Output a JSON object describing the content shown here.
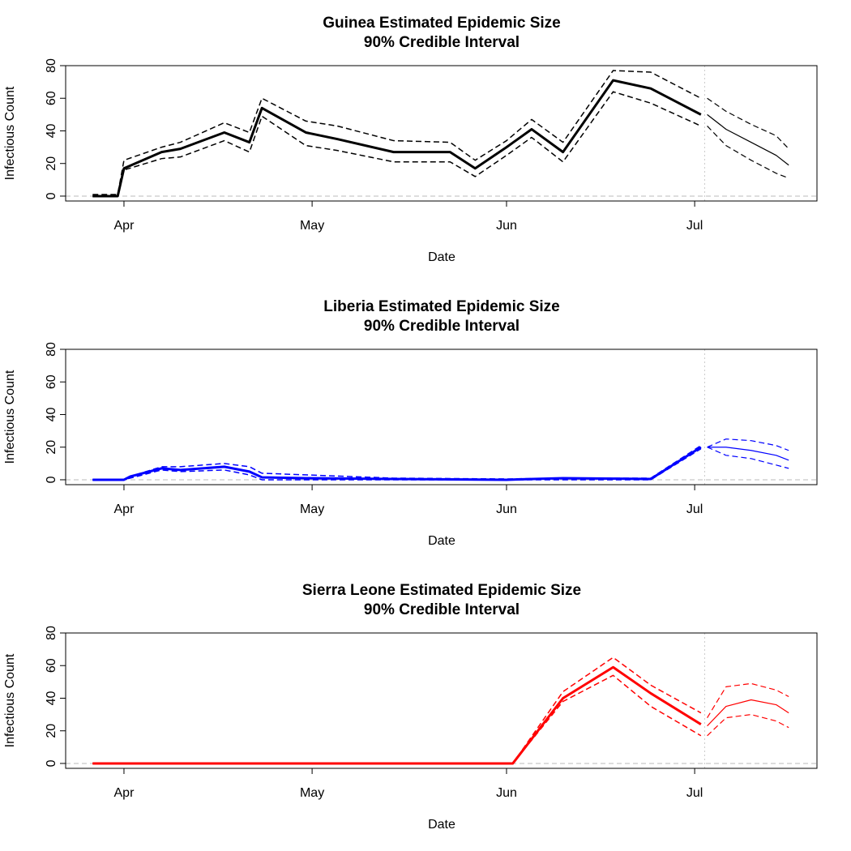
{
  "chart_data": [
    {
      "type": "line",
      "title": "Guinea Estimated Epidemic Size",
      "subtitle": "90% Credible Interval",
      "xlabel": "Date",
      "ylabel": "Infectious Count",
      "xlim": [
        -9.3,
        110.5
      ],
      "xticks": [
        {
          "value": 0,
          "label": "Apr"
        },
        {
          "value": 30,
          "label": "May"
        },
        {
          "value": 61,
          "label": "Jun"
        },
        {
          "value": 91,
          "label": "Jul"
        }
      ],
      "ylim": [
        -3,
        80
      ],
      "yticks": [
        0,
        20,
        40,
        60,
        80
      ],
      "hline": 0,
      "vline": 92.6,
      "series": [
        {
          "color": "#000000",
          "width": 3,
          "dashed": false,
          "x": [
            -5,
            -1,
            0,
            6,
            9,
            16,
            20,
            22,
            29,
            34,
            43,
            52,
            56,
            61,
            65,
            70,
            78,
            84,
            92
          ],
          "values": [
            0,
            0,
            17,
            27,
            29,
            39,
            33,
            54,
            39,
            35,
            27,
            27,
            17,
            30,
            41,
            27,
            71,
            66,
            50
          ]
        },
        {
          "color": "#000000",
          "width": 1.5,
          "dashed": true,
          "x": [
            -5,
            -1,
            0,
            6,
            9,
            16,
            20,
            22,
            29,
            34,
            43,
            52,
            56,
            61,
            65,
            70,
            78,
            84,
            92
          ],
          "values": [
            1,
            1,
            22,
            30,
            33,
            45,
            39,
            60,
            46,
            43,
            34,
            33,
            22,
            34,
            47,
            33,
            77,
            76,
            60
          ]
        },
        {
          "color": "#000000",
          "width": 1.5,
          "dashed": true,
          "x": [
            -5,
            -1,
            0,
            6,
            9,
            16,
            20,
            22,
            29,
            34,
            43,
            52,
            56,
            61,
            65,
            70,
            78,
            84,
            92
          ],
          "values": [
            0,
            0,
            16,
            23,
            24,
            34,
            27,
            49,
            31,
            28,
            21,
            21,
            12,
            25,
            36,
            21,
            64,
            57,
            43
          ]
        },
        {
          "color": "#000000",
          "width": 1.2,
          "dashed": false,
          "x": [
            93,
            96,
            100,
            104,
            106
          ],
          "values": [
            50,
            41,
            33,
            25,
            19
          ]
        },
        {
          "color": "#000000",
          "width": 1.2,
          "dashed": true,
          "x": [
            93,
            96,
            100,
            104,
            106
          ],
          "values": [
            60,
            52,
            44,
            37,
            29
          ]
        },
        {
          "color": "#000000",
          "width": 1.2,
          "dashed": true,
          "x": [
            93,
            96,
            100,
            104,
            106
          ],
          "values": [
            43,
            31,
            22,
            14,
            11
          ]
        }
      ]
    },
    {
      "type": "line",
      "title": "Liberia Estimated Epidemic Size",
      "subtitle": "90% Credible Interval",
      "xlabel": "Date",
      "ylabel": "Infectious Count",
      "xlim": [
        -9.3,
        110.5
      ],
      "xticks": [
        {
          "value": 0,
          "label": "Apr"
        },
        {
          "value": 30,
          "label": "May"
        },
        {
          "value": 61,
          "label": "Jun"
        },
        {
          "value": 91,
          "label": "Jul"
        }
      ],
      "ylim": [
        -3,
        80
      ],
      "yticks": [
        0,
        20,
        40,
        60,
        80
      ],
      "hline": 0,
      "vline": 92.6,
      "series": [
        {
          "color": "#0000ff",
          "width": 3,
          "dashed": false,
          "x": [
            -5,
            0,
            1,
            6,
            9,
            16,
            20,
            22,
            29,
            43,
            61,
            70,
            84,
            92
          ],
          "values": [
            0,
            0,
            2,
            7,
            6,
            8,
            5,
            1.5,
            1,
            0.5,
            0,
            1,
            0.5,
            20
          ]
        },
        {
          "color": "#0000ff",
          "width": 1.5,
          "dashed": true,
          "x": [
            -5,
            0,
            1,
            6,
            9,
            16,
            20,
            22,
            29,
            43,
            61,
            70,
            84,
            92
          ],
          "values": [
            0,
            0,
            2,
            8,
            8,
            10,
            8,
            4,
            3,
            1,
            0.5,
            1,
            1,
            21
          ]
        },
        {
          "color": "#0000ff",
          "width": 1.5,
          "dashed": true,
          "x": [
            -5,
            0,
            1,
            6,
            9,
            16,
            20,
            22,
            29,
            43,
            61,
            70,
            84,
            92
          ],
          "values": [
            0,
            0,
            1,
            6,
            5,
            6,
            3,
            0,
            0,
            0,
            0,
            0,
            0,
            19
          ]
        },
        {
          "color": "#0000ff",
          "width": 1.2,
          "dashed": false,
          "x": [
            93,
            96,
            100,
            104,
            106
          ],
          "values": [
            20,
            20,
            18,
            15,
            12
          ]
        },
        {
          "color": "#0000ff",
          "width": 1.2,
          "dashed": true,
          "x": [
            93,
            96,
            100,
            104,
            106
          ],
          "values": [
            20,
            25,
            24,
            21,
            18
          ]
        },
        {
          "color": "#0000ff",
          "width": 1.2,
          "dashed": true,
          "x": [
            93,
            96,
            100,
            104,
            106
          ],
          "values": [
            20,
            15,
            13,
            9,
            7
          ]
        }
      ]
    },
    {
      "type": "line",
      "title": "Sierra Leone Estimated Epidemic Size",
      "subtitle": "90% Credible Interval",
      "xlabel": "Date",
      "ylabel": "Infectious Count",
      "xlim": [
        -9.3,
        110.5
      ],
      "xticks": [
        {
          "value": 0,
          "label": "Apr"
        },
        {
          "value": 30,
          "label": "May"
        },
        {
          "value": 61,
          "label": "Jun"
        },
        {
          "value": 91,
          "label": "Jul"
        }
      ],
      "ylim": [
        -3,
        80
      ],
      "yticks": [
        0,
        20,
        40,
        60,
        80
      ],
      "hline": 0,
      "vline": 92.6,
      "series": [
        {
          "color": "#ff0000",
          "width": 3,
          "dashed": false,
          "x": [
            -5,
            0,
            62,
            70,
            78,
            84,
            92
          ],
          "values": [
            0,
            0,
            0,
            40,
            59,
            43,
            24
          ]
        },
        {
          "color": "#ff0000",
          "width": 1.5,
          "dashed": true,
          "x": [
            -5,
            0,
            62,
            70,
            78,
            84,
            92
          ],
          "values": [
            0,
            0,
            0,
            44,
            65,
            48,
            31
          ]
        },
        {
          "color": "#ff0000",
          "width": 1.5,
          "dashed": true,
          "x": [
            -5,
            0,
            62,
            70,
            78,
            84,
            92
          ],
          "values": [
            0,
            0,
            0,
            38,
            54,
            35,
            17
          ]
        },
        {
          "color": "#ff0000",
          "width": 1.2,
          "dashed": false,
          "x": [
            93,
            96,
            100,
            104,
            106
          ],
          "values": [
            23,
            35,
            39,
            36,
            31
          ]
        },
        {
          "color": "#ff0000",
          "width": 1.2,
          "dashed": true,
          "x": [
            93,
            96,
            100,
            104,
            106
          ],
          "values": [
            28,
            47,
            49,
            45,
            41
          ]
        },
        {
          "color": "#ff0000",
          "width": 1.2,
          "dashed": true,
          "x": [
            93,
            96,
            100,
            104,
            106
          ],
          "values": [
            17,
            28,
            30,
            26,
            22
          ]
        }
      ]
    }
  ]
}
